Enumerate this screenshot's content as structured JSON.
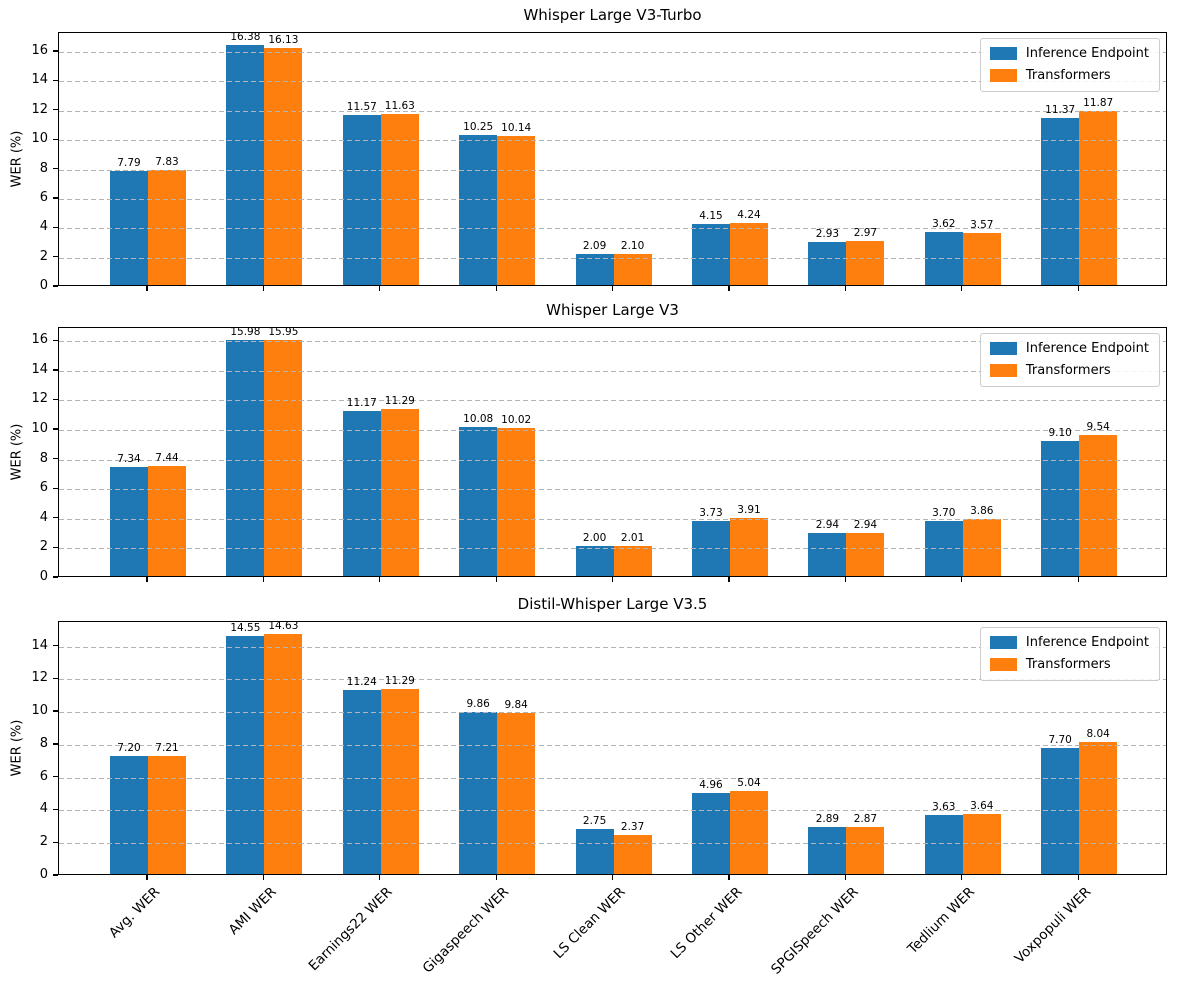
{
  "figure": {
    "background": "#ffffff",
    "ylabel": "WER (%)"
  },
  "colors": {
    "inference_endpoint": "#1f77b4",
    "transformers": "#ff7f0e",
    "grid": "#b4b4b4",
    "axis": "#000000"
  },
  "legend": {
    "items": [
      {
        "label": "Inference Endpoint",
        "color": "#1f77b4"
      },
      {
        "label": "Transformers",
        "color": "#ff7f0e"
      }
    ],
    "position": "upper right"
  },
  "categories": [
    "Avg. WER",
    "AMI WER",
    "Earnings22 WER",
    "Gigaspeech WER",
    "LS Clean WER",
    "LS Other WER",
    "SPGISpeech WER",
    "Tedlium WER",
    "Voxpopuli WER"
  ],
  "chart_data": [
    {
      "type": "bar",
      "title": "Whisper Large V3-Turbo",
      "ylabel": "WER (%)",
      "xlabel": "",
      "grid": true,
      "legend_position": "upper right",
      "categories": [
        "Avg. WER",
        "AMI WER",
        "Earnings22 WER",
        "Gigaspeech WER",
        "LS Clean WER",
        "LS Other WER",
        "SPGISpeech WER",
        "Tedlium WER",
        "Voxpopuli WER"
      ],
      "yticks": [
        0,
        2,
        4,
        6,
        8,
        10,
        12,
        14,
        16
      ],
      "ylim": [
        0,
        17.3
      ],
      "series": [
        {
          "name": "Inference Endpoint",
          "color": "#1f77b4",
          "values": [
            7.79,
            16.38,
            11.57,
            10.25,
            2.09,
            4.15,
            2.93,
            3.62,
            11.37
          ]
        },
        {
          "name": "Transformers",
          "color": "#ff7f0e",
          "values": [
            7.83,
            16.13,
            11.63,
            10.14,
            2.1,
            4.24,
            2.97,
            3.57,
            11.87
          ]
        }
      ]
    },
    {
      "type": "bar",
      "title": "Whisper Large V3",
      "ylabel": "WER (%)",
      "xlabel": "",
      "grid": true,
      "legend_position": "upper right",
      "categories": [
        "Avg. WER",
        "AMI WER",
        "Earnings22 WER",
        "Gigaspeech WER",
        "LS Clean WER",
        "LS Other WER",
        "SPGISpeech WER",
        "Tedlium WER",
        "Voxpopuli WER"
      ],
      "yticks": [
        0,
        2,
        4,
        6,
        8,
        10,
        12,
        14,
        16
      ],
      "ylim": [
        0,
        16.9
      ],
      "series": [
        {
          "name": "Inference Endpoint",
          "color": "#1f77b4",
          "values": [
            7.34,
            15.98,
            11.17,
            10.08,
            2.0,
            3.73,
            2.94,
            3.7,
            9.1
          ]
        },
        {
          "name": "Transformers",
          "color": "#ff7f0e",
          "values": [
            7.44,
            15.95,
            11.29,
            10.02,
            2.01,
            3.91,
            2.94,
            3.86,
            9.54
          ]
        }
      ]
    },
    {
      "type": "bar",
      "title": "Distil-Whisper Large V3.5",
      "ylabel": "WER (%)",
      "xlabel": "",
      "grid": true,
      "legend_position": "upper right",
      "categories": [
        "Avg. WER",
        "AMI WER",
        "Earnings22 WER",
        "Gigaspeech WER",
        "LS Clean WER",
        "LS Other WER",
        "SPGISpeech WER",
        "Tedlium WER",
        "Voxpopuli WER"
      ],
      "yticks": [
        0,
        2,
        4,
        6,
        8,
        10,
        12,
        14
      ],
      "ylim": [
        0,
        15.5
      ],
      "series": [
        {
          "name": "Inference Endpoint",
          "color": "#1f77b4",
          "values": [
            7.2,
            14.55,
            11.24,
            9.86,
            2.75,
            4.96,
            2.89,
            3.63,
            7.7
          ]
        },
        {
          "name": "Transformers",
          "color": "#ff7f0e",
          "values": [
            7.21,
            14.63,
            11.29,
            9.84,
            2.37,
            5.04,
            2.87,
            3.64,
            8.04
          ]
        }
      ]
    }
  ]
}
